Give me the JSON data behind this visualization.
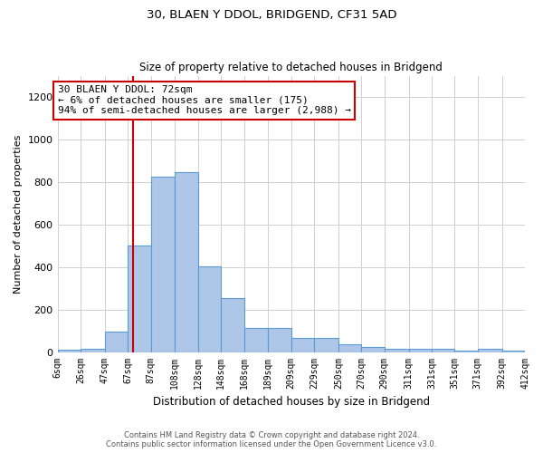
{
  "title": "30, BLAEN Y DDOL, BRIDGEND, CF31 5AD",
  "subtitle": "Size of property relative to detached houses in Bridgend",
  "xlabel": "Distribution of detached houses by size in Bridgend",
  "ylabel": "Number of detached properties",
  "annotation_text": "30 BLAEN Y DDOL: 72sqm\n← 6% of detached houses are smaller (175)\n94% of semi-detached houses are larger (2,988) →",
  "property_size": 72,
  "footer_line1": "Contains HM Land Registry data © Crown copyright and database right 2024.",
  "footer_line2": "Contains public sector information licensed under the Open Government Licence v3.0.",
  "bin_edges": [
    6,
    26,
    47,
    67,
    87,
    108,
    128,
    148,
    168,
    189,
    209,
    229,
    250,
    270,
    290,
    311,
    331,
    351,
    371,
    392,
    412
  ],
  "bar_heights": [
    10,
    15,
    95,
    500,
    825,
    845,
    405,
    255,
    115,
    115,
    65,
    65,
    35,
    25,
    15,
    15,
    15,
    5,
    15,
    5
  ],
  "bar_color": "#aec6e8",
  "bar_edge_color": "#5b9bd5",
  "vline_color": "#cc0000",
  "annotation_box_color": "#cc0000",
  "grid_color": "#d0d0d0",
  "ylim": [
    0,
    1300
  ],
  "yticks": [
    0,
    200,
    400,
    600,
    800,
    1000,
    1200
  ],
  "figsize": [
    6.0,
    5.0
  ],
  "dpi": 100
}
